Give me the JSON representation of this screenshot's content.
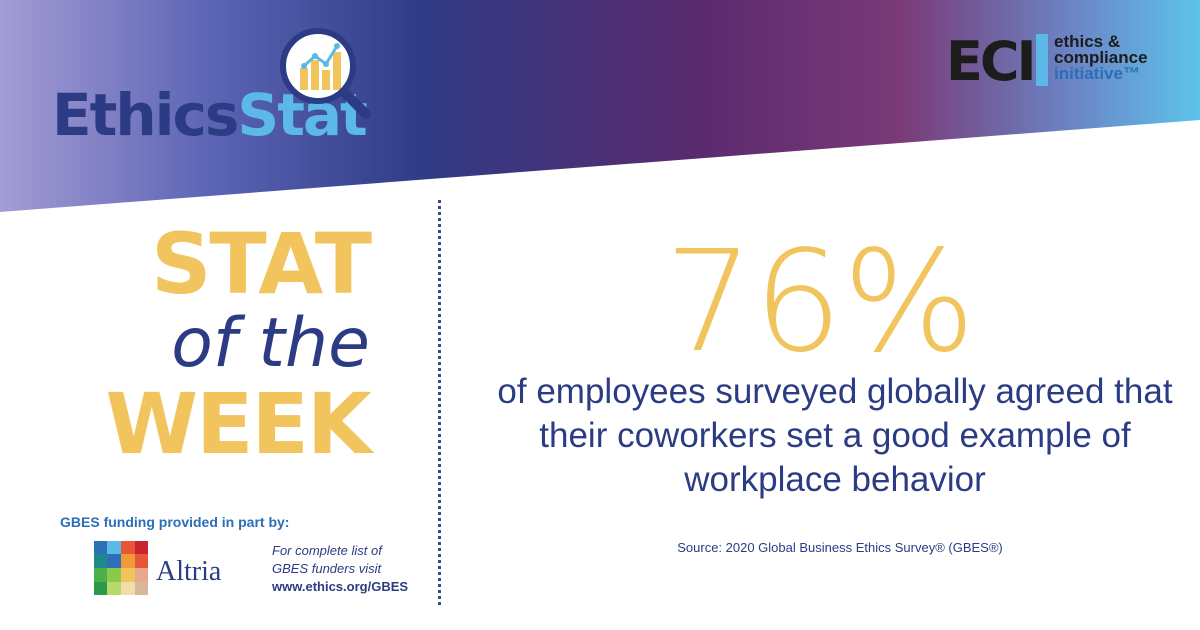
{
  "brand": {
    "title_part1": "Ethics",
    "title_part2": "Stat",
    "magnifier_icon": "magnifier-chart-icon"
  },
  "eci": {
    "letters": "ECI",
    "line1": "ethics &",
    "line2": "compliance",
    "line3": "initiative™"
  },
  "headline": {
    "word1": "STAT",
    "word2": "of the",
    "word3": "WEEK"
  },
  "stat": {
    "value": "76%",
    "description": "of employees surveyed globally agreed that their coworkers set a good example of workplace behavior"
  },
  "source": "Source: 2020 Global Business Ethics Survey® (GBES®)",
  "funding": {
    "label": "GBES funding provided in part by:",
    "sponsor": "Altria",
    "note_line1": "For complete list of",
    "note_line2": "GBES funders visit",
    "url": "www.ethics.org/GBES"
  },
  "colors": {
    "accent_yellow": "#f2c45e",
    "navy": "#2c3c84",
    "light_blue": "#5cb8e6",
    "purple": "#5a2a6e"
  }
}
